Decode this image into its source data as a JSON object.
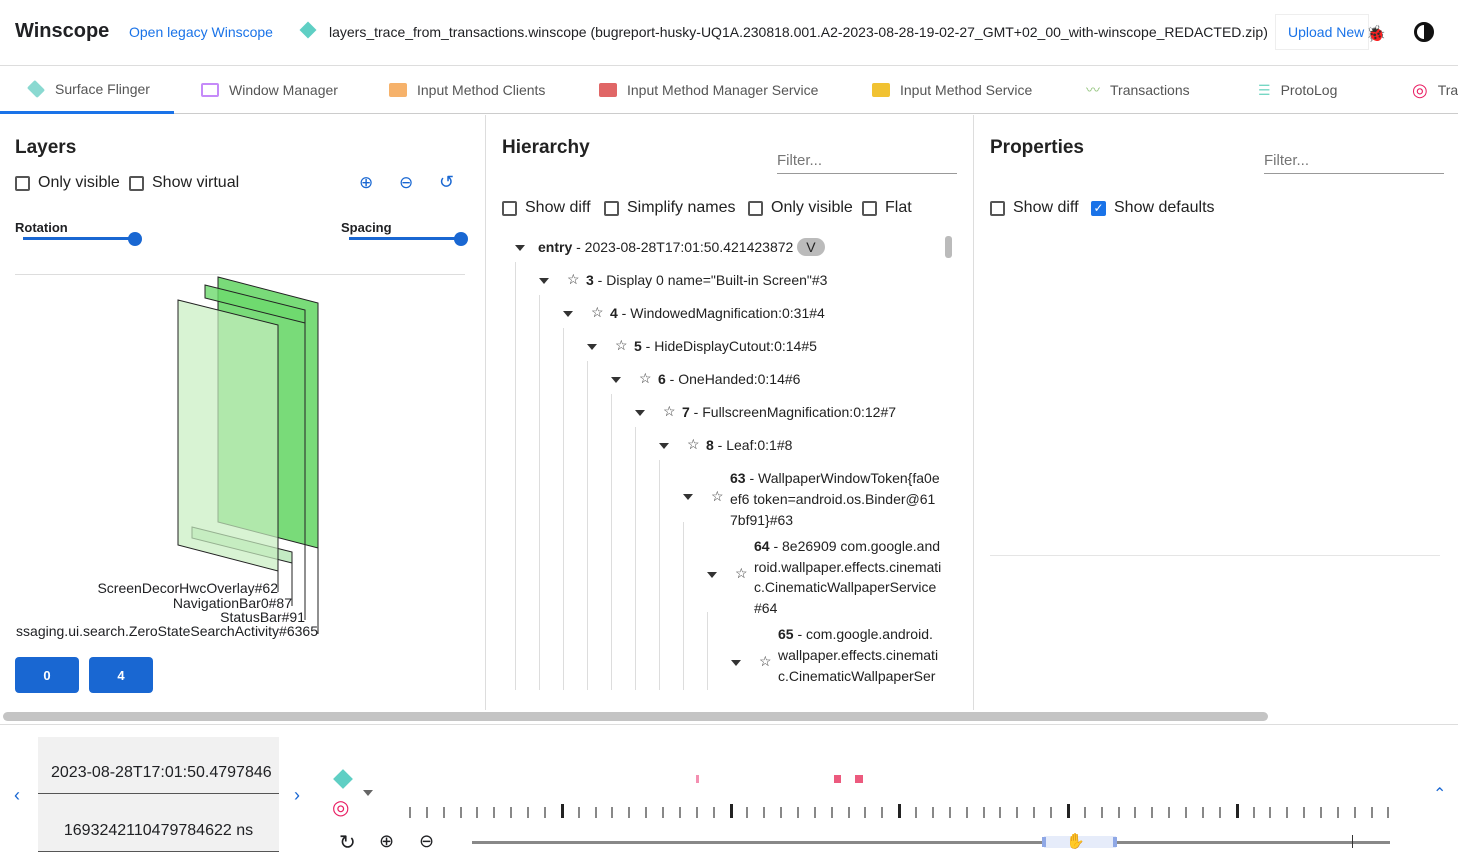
{
  "header": {
    "title": "Winscope",
    "legacy_link": "Open legacy Winscope",
    "trace_file": "layers_trace_from_transactions.winscope (bugreport-husky-UQ1A.230818.001.A2-2023-08-28-19-02-27_GMT+02_00_with-winscope_REDACTED.zip)",
    "upload_label": "Upload New"
  },
  "tabs": [
    {
      "label": "Surface Flinger",
      "icon": "layers-icon",
      "color": "#8ad9d1"
    },
    {
      "label": "Window Manager",
      "icon": "window-icon",
      "color": "#c58af9"
    },
    {
      "label": "Input Method Clients",
      "icon": "keyboard-icon",
      "color": "#f6b26b"
    },
    {
      "label": "Input Method Manager Service",
      "icon": "keyboard-icon",
      "color": "#e06666"
    },
    {
      "label": "Input Method Service",
      "icon": "keyboard-icon",
      "color": "#f1c232"
    },
    {
      "label": "Transactions",
      "icon": "chart-icon",
      "color": "#93c47d"
    },
    {
      "label": "ProtoLog",
      "icon": "list-icon",
      "color": "#76d7c4"
    },
    {
      "label": "Tra",
      "icon": "rings-icon",
      "color": "#e91e63"
    }
  ],
  "layers": {
    "title": "Layers",
    "only_visible": "Only visible",
    "show_virtual": "Show virtual",
    "rotation": "Rotation",
    "spacing": "Spacing",
    "rotation_value": 1.0,
    "spacing_value": 1.0,
    "labels": [
      "ScreenDecorHwcOverlay#62",
      "NavigationBar0#87",
      "StatusBar#91",
      "ssaging.ui.search.ZeroStateSearchActivity#6365"
    ],
    "display_buttons": [
      "0",
      "4"
    ]
  },
  "hierarchy": {
    "title": "Hierarchy",
    "filter_placeholder": "Filter...",
    "show_diff": "Show diff",
    "simplify_names": "Simplify names",
    "only_visible": "Only visible",
    "flat": "Flat",
    "entry_bold": "entry",
    "entry_rest": " - 2023-08-28T17:01:50.421423872",
    "entry_badge": "V",
    "nodes": [
      {
        "id": "3",
        "name": " - Display 0 name=\"Built-in Screen\"#3"
      },
      {
        "id": "4",
        "name": " - WindowedMagnification:0:31#4"
      },
      {
        "id": "5",
        "name": " - HideDisplayCutout:0:14#5"
      },
      {
        "id": "6",
        "name": " - OneHanded:0:14#6"
      },
      {
        "id": "7",
        "name": " - FullscreenMagnification:0:12#7"
      },
      {
        "id": "8",
        "name": " - Leaf:0:1#8"
      },
      {
        "id": "63",
        "name": " - WallpaperWindowToken{fa0eef6 token=android.os.Binder@617bf91}#63"
      },
      {
        "id": "64",
        "name": " - 8e26909 com.google.android.wallpaper.effects.cinematic.CinematicWallpaperService#64"
      },
      {
        "id": "65",
        "name": " - com.google.android.wallpaper.effects.cinematic.CinematicWallpaperSer"
      }
    ]
  },
  "properties": {
    "title": "Properties",
    "filter_placeholder": "Filter...",
    "show_diff": "Show diff",
    "show_defaults": "Show defaults",
    "show_defaults_checked": true
  },
  "timeline": {
    "timestamp": "2023-08-28T17:01:50.4797846",
    "ns": "1693242110479784622 ns"
  }
}
